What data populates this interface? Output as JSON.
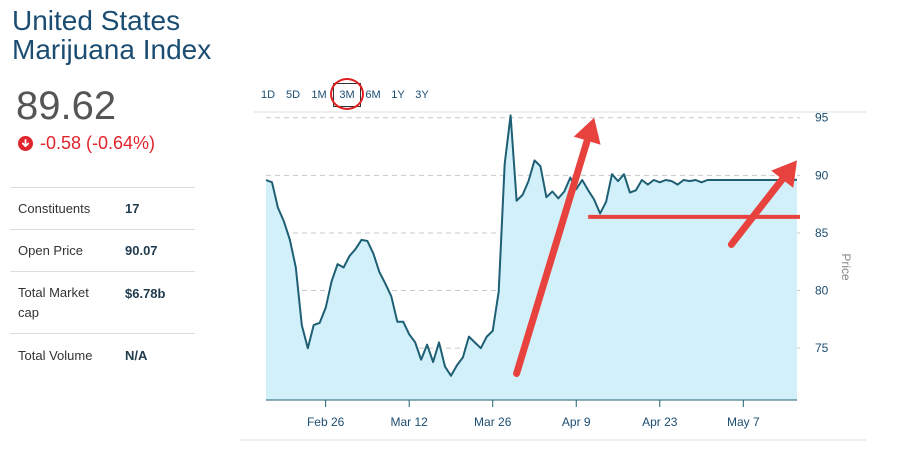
{
  "header": {
    "title_line1": "United States",
    "title_line2": "Marijuana Index"
  },
  "quote": {
    "price": "89.62",
    "change": "-0.58 (-0.64%)",
    "direction_icon": "arrow-down-circle-icon",
    "change_color": "#e0242b"
  },
  "stats": [
    {
      "label": "Constituents",
      "value": "17"
    },
    {
      "label": "Open Price",
      "value": "90.07"
    },
    {
      "label": "Total Market cap",
      "value": "$6.78b"
    },
    {
      "label": "Total Volume",
      "value": "N/A"
    }
  ],
  "range_tabs": [
    {
      "label": "1D",
      "active": false
    },
    {
      "label": "5D",
      "active": false
    },
    {
      "label": "1M",
      "active": false
    },
    {
      "label": "3M",
      "active": true
    },
    {
      "label": "6M",
      "active": false
    },
    {
      "label": "1Y",
      "active": false
    },
    {
      "label": "3Y",
      "active": false
    }
  ],
  "chart_data": {
    "type": "area",
    "title": "",
    "ylabel": "Price",
    "ylim": [
      70.5,
      96.8
    ],
    "y_ticks": [
      "95",
      "90",
      "85",
      "80",
      "75"
    ],
    "x_ticks": [
      "Feb 26",
      "Mar 12",
      "Mar 26",
      "Apr 9",
      "Apr 23",
      "May 7"
    ],
    "x_tick_dates": [
      "2018-02-26",
      "2018-03-12",
      "2018-03-26",
      "2018-04-09",
      "2018-04-23",
      "2018-05-07"
    ],
    "grid": true,
    "colors": {
      "line": "#1e5f74",
      "fill": "#d2f0fa",
      "annotation": "#e8423f"
    },
    "series": [
      {
        "x": [
          "2018-02-16",
          "2018-02-17",
          "2018-02-18",
          "2018-02-19",
          "2018-02-20",
          "2018-02-21",
          "2018-02-22",
          "2018-02-23",
          "2018-02-24",
          "2018-02-25",
          "2018-02-26",
          "2018-02-27",
          "2018-02-28",
          "2018-03-01",
          "2018-03-02",
          "2018-03-03",
          "2018-03-04",
          "2018-03-05",
          "2018-03-06",
          "2018-03-07",
          "2018-03-08",
          "2018-03-09",
          "2018-03-10",
          "2018-03-11",
          "2018-03-12",
          "2018-03-13",
          "2018-03-14",
          "2018-03-15",
          "2018-03-16",
          "2018-03-17",
          "2018-03-18",
          "2018-03-19",
          "2018-03-20",
          "2018-03-21",
          "2018-03-22",
          "2018-03-23",
          "2018-03-24",
          "2018-03-25",
          "2018-03-26",
          "2018-03-27",
          "2018-03-28",
          "2018-03-29",
          "2018-03-30",
          "2018-03-31",
          "2018-04-01",
          "2018-04-02",
          "2018-04-03",
          "2018-04-04",
          "2018-04-05",
          "2018-04-06",
          "2018-04-07",
          "2018-04-08",
          "2018-04-09",
          "2018-04-10",
          "2018-04-11",
          "2018-04-12",
          "2018-04-13",
          "2018-04-14",
          "2018-04-15",
          "2018-04-16",
          "2018-04-17",
          "2018-04-18",
          "2018-04-19",
          "2018-04-20",
          "2018-04-21",
          "2018-04-22",
          "2018-04-23",
          "2018-04-24",
          "2018-04-25",
          "2018-04-26",
          "2018-04-27",
          "2018-04-28",
          "2018-04-29",
          "2018-04-30",
          "2018-05-01",
          "2018-05-02",
          "2018-05-03",
          "2018-05-04",
          "2018-05-05",
          "2018-05-06",
          "2018-05-07",
          "2018-05-08",
          "2018-05-09",
          "2018-05-10",
          "2018-05-11",
          "2018-05-12",
          "2018-05-13",
          "2018-05-14",
          "2018-05-15",
          "2018-05-16"
        ],
        "values": [
          89.6,
          89.4,
          87.2,
          86.0,
          84.4,
          82.0,
          77.0,
          75.0,
          77.0,
          77.2,
          78.5,
          80.8,
          82.3,
          82.0,
          83.0,
          83.6,
          84.4,
          84.3,
          83.2,
          81.6,
          80.6,
          79.5,
          77.3,
          77.3,
          76.2,
          75.5,
          74.0,
          75.3,
          73.8,
          75.5,
          73.4,
          72.6,
          73.5,
          74.2,
          76.0,
          75.5,
          75.0,
          76.0,
          76.5,
          79.9,
          91.0,
          95.2,
          87.8,
          88.3,
          89.5,
          91.3,
          90.8,
          88.1,
          88.6,
          88.0,
          88.6,
          89.8,
          88.8,
          89.6,
          88.7,
          87.9,
          86.7,
          87.7,
          90.1,
          89.5,
          90.1,
          88.5,
          88.7,
          89.6,
          89.2,
          89.6,
          89.4,
          89.6,
          89.5,
          89.2,
          89.6,
          89.5,
          89.6,
          89.4,
          89.6,
          89.6,
          89.6,
          89.6,
          89.6,
          89.6,
          89.6,
          89.6,
          89.6,
          89.6,
          89.6,
          89.6,
          89.6,
          89.6,
          89.6,
          89.62
        ]
      }
    ]
  }
}
